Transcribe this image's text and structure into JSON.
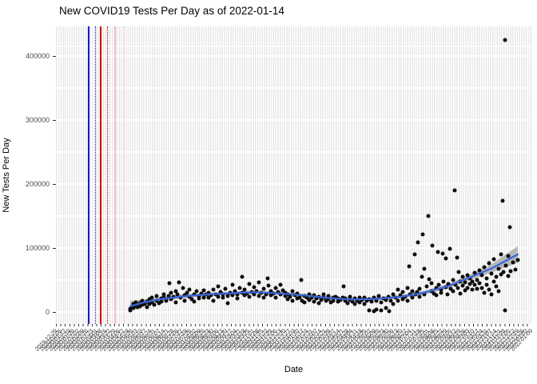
{
  "chart_data": {
    "type": "scatter",
    "title": "New COVID19 Tests Per Day as of 2022-01-14",
    "xlabel": "Date",
    "ylabel": "New Tests Per Day",
    "y_ticks": [
      0,
      100000,
      200000,
      300000,
      400000
    ],
    "ylim": [
      -18750,
      446250
    ],
    "grid": "dense light-gray vertical date gridlines, horizontal gridlines every 50000 (minor 25000? rendered every half-interval) as white breaks",
    "legend": "none",
    "point_color": "#0d0d0d",
    "x_axis_note": "x values below are panel pixels 0-595; the rotated date tick labels overlap and are illegible in the source image; tick label list is an estimated weekly sequence spanning the axis",
    "x_tick_labels": [
      "2019-12-29",
      "2020-01-05",
      "2020-01-12",
      "2020-01-19",
      "2020-01-26",
      "2020-02-02",
      "2020-02-09",
      "2020-02-16",
      "2020-02-23",
      "2020-03-01",
      "2020-03-08",
      "2020-03-15",
      "2020-03-22",
      "2020-03-29",
      "2020-04-05",
      "2020-04-12",
      "2020-04-19",
      "2020-04-26",
      "2020-05-03",
      "2020-05-10",
      "2020-05-17",
      "2020-05-24",
      "2020-05-31",
      "2020-06-07",
      "2020-06-14",
      "2020-06-21",
      "2020-06-28",
      "2020-07-05",
      "2020-07-12",
      "2020-07-19",
      "2020-07-26",
      "2020-08-02",
      "2020-08-09",
      "2020-08-16",
      "2020-08-23",
      "2020-08-30",
      "2020-09-06",
      "2020-09-13",
      "2020-09-20",
      "2020-09-27",
      "2020-10-04",
      "2020-10-11",
      "2020-10-18",
      "2020-10-25",
      "2020-11-01",
      "2020-11-08",
      "2020-11-15",
      "2020-11-22",
      "2020-11-29",
      "2020-12-06",
      "2020-12-13",
      "2020-12-20",
      "2020-12-27",
      "2021-01-03",
      "2021-01-10",
      "2021-01-17",
      "2021-01-24",
      "2021-01-31",
      "2021-02-07",
      "2021-02-14",
      "2021-02-21",
      "2021-02-28",
      "2021-03-07",
      "2021-03-14",
      "2021-03-21",
      "2021-03-28",
      "2021-04-04",
      "2021-04-11",
      "2021-04-18",
      "2021-04-25",
      "2021-05-02",
      "2021-05-09",
      "2021-05-16",
      "2021-05-23",
      "2021-05-30",
      "2021-06-06",
      "2021-06-13",
      "2021-06-20",
      "2021-06-27",
      "2021-07-04",
      "2021-07-11",
      "2021-07-18",
      "2021-07-25",
      "2021-08-01",
      "2021-08-08",
      "2021-08-15",
      "2021-08-22",
      "2021-08-29",
      "2021-09-05",
      "2021-09-12",
      "2021-09-19",
      "2021-09-26",
      "2021-10-03",
      "2021-10-10",
      "2021-10-17",
      "2021-10-24",
      "2021-10-31",
      "2021-11-07",
      "2021-11-14",
      "2021-11-21",
      "2021-11-28",
      "2021-12-05",
      "2021-12-12",
      "2021-12-19",
      "2021-12-26",
      "2022-01-02",
      "2022-01-09"
    ],
    "vlines": [
      {
        "x": 40,
        "color": "#1b1bd1",
        "style": "solid"
      },
      {
        "x": 49,
        "color": "#1b1bd1",
        "style": "dotted"
      },
      {
        "x": 55,
        "color": "#d40000",
        "style": "solid"
      },
      {
        "x": 64,
        "color": "#d40000",
        "style": "dotted"
      },
      {
        "x": 73,
        "color": "#f5b8c4",
        "style": "solid"
      },
      {
        "x": 85,
        "color": "#f5b8c4",
        "style": "dotted"
      }
    ],
    "smooth": {
      "name": "loess-smooth-with-ci",
      "color": "#3866d8",
      "ribbon_color": "rgba(110,110,110,0.45)",
      "line": [
        [
          93,
          9000
        ],
        [
          110,
          15000
        ],
        [
          130,
          20000
        ],
        [
          160,
          24500
        ],
        [
          190,
          27500
        ],
        [
          230,
          30000
        ],
        [
          250,
          31000
        ],
        [
          280,
          29000
        ],
        [
          310,
          26000
        ],
        [
          340,
          22000
        ],
        [
          370,
          19500
        ],
        [
          400,
          20500
        ],
        [
          430,
          23500
        ],
        [
          460,
          30000
        ],
        [
          490,
          40000
        ],
        [
          520,
          55000
        ],
        [
          545,
          68000
        ],
        [
          578,
          90000
        ]
      ],
      "ribbon_halfwidth": [
        [
          93,
          8000
        ],
        [
          110,
          5000
        ],
        [
          130,
          3500
        ],
        [
          160,
          3000
        ],
        [
          190,
          2500
        ],
        [
          230,
          2500
        ],
        [
          250,
          2500
        ],
        [
          280,
          2500
        ],
        [
          310,
          2500
        ],
        [
          340,
          2500
        ],
        [
          370,
          2500
        ],
        [
          400,
          2500
        ],
        [
          430,
          2500
        ],
        [
          460,
          3000
        ],
        [
          490,
          3500
        ],
        [
          520,
          4500
        ],
        [
          545,
          6500
        ],
        [
          578,
          13000
        ]
      ]
    },
    "points": [
      [
        93,
        5000
      ],
      [
        93,
        2000
      ],
      [
        95,
        8000
      ],
      [
        97,
        12000
      ],
      [
        97,
        6000
      ],
      [
        100,
        10000
      ],
      [
        100,
        15000
      ],
      [
        102,
        7000
      ],
      [
        105,
        14000
      ],
      [
        105,
        9000
      ],
      [
        108,
        18000
      ],
      [
        108,
        11000
      ],
      [
        111,
        13000
      ],
      [
        114,
        16000
      ],
      [
        114,
        8000
      ],
      [
        117,
        20000
      ],
      [
        117,
        12000
      ],
      [
        120,
        15000
      ],
      [
        120,
        23000
      ],
      [
        123,
        11000
      ],
      [
        126,
        18000
      ],
      [
        126,
        25000
      ],
      [
        129,
        14000
      ],
      [
        132,
        21000
      ],
      [
        132,
        16000
      ],
      [
        135,
        22000
      ],
      [
        135,
        28000
      ],
      [
        138,
        17000
      ],
      [
        141,
        25000
      ],
      [
        142,
        45000
      ],
      [
        144,
        30000
      ],
      [
        144,
        20000
      ],
      [
        147,
        24000
      ],
      [
        150,
        33000
      ],
      [
        150,
        15000
      ],
      [
        152,
        27000
      ],
      [
        154,
        46000
      ],
      [
        156,
        22000
      ],
      [
        159,
        38000
      ],
      [
        161,
        26000
      ],
      [
        161,
        18000
      ],
      [
        164,
        30000
      ],
      [
        167,
        24000
      ],
      [
        167,
        35000
      ],
      [
        170,
        20000
      ],
      [
        173,
        28000
      ],
      [
        173,
        16000
      ],
      [
        176,
        32000
      ],
      [
        179,
        25000
      ],
      [
        179,
        21000
      ],
      [
        182,
        29000
      ],
      [
        185,
        23000
      ],
      [
        185,
        34000
      ],
      [
        188,
        27000
      ],
      [
        191,
        30000
      ],
      [
        191,
        22000
      ],
      [
        194,
        26000
      ],
      [
        197,
        35000
      ],
      [
        197,
        18000
      ],
      [
        200,
        28000
      ],
      [
        203,
        24000
      ],
      [
        203,
        40000
      ],
      [
        206,
        31000
      ],
      [
        209,
        22000
      ],
      [
        209,
        27000
      ],
      [
        212,
        36000
      ],
      [
        215,
        25000
      ],
      [
        215,
        14000
      ],
      [
        218,
        30000
      ],
      [
        221,
        42000
      ],
      [
        221,
        26000
      ],
      [
        224,
        33000
      ],
      [
        227,
        21000
      ],
      [
        227,
        28000
      ],
      [
        230,
        38000
      ],
      [
        233,
        55000
      ],
      [
        233,
        30000
      ],
      [
        236,
        26000
      ],
      [
        236,
        35000
      ],
      [
        239,
        29000
      ],
      [
        242,
        44000
      ],
      [
        242,
        24000
      ],
      [
        245,
        31000
      ],
      [
        248,
        27000
      ],
      [
        248,
        39000
      ],
      [
        251,
        33000
      ],
      [
        254,
        25000
      ],
      [
        254,
        46000
      ],
      [
        257,
        30000
      ],
      [
        260,
        36000
      ],
      [
        260,
        22000
      ],
      [
        263,
        28000
      ],
      [
        265,
        52000
      ],
      [
        266,
        41000
      ],
      [
        269,
        26000
      ],
      [
        269,
        33000
      ],
      [
        272,
        29000
      ],
      [
        275,
        37000
      ],
      [
        275,
        23000
      ],
      [
        278,
        31000
      ],
      [
        281,
        27000
      ],
      [
        281,
        43000
      ],
      [
        284,
        34000
      ],
      [
        287,
        25000
      ],
      [
        287,
        30000
      ],
      [
        290,
        28000
      ],
      [
        290,
        20000
      ],
      [
        293,
        24000
      ],
      [
        296,
        32000
      ],
      [
        296,
        17000
      ],
      [
        299,
        26000
      ],
      [
        302,
        21000
      ],
      [
        302,
        29000
      ],
      [
        305,
        23000
      ],
      [
        307,
        50000
      ],
      [
        308,
        18000
      ],
      [
        311,
        25000
      ],
      [
        311,
        15000
      ],
      [
        314,
        22000
      ],
      [
        317,
        27000
      ],
      [
        317,
        19000
      ],
      [
        320,
        23000
      ],
      [
        323,
        16000
      ],
      [
        323,
        26000
      ],
      [
        326,
        21000
      ],
      [
        329,
        24000
      ],
      [
        329,
        14000
      ],
      [
        332,
        19000
      ],
      [
        335,
        22000
      ],
      [
        335,
        27000
      ],
      [
        338,
        17000
      ],
      [
        341,
        20000
      ],
      [
        341,
        25000
      ],
      [
        344,
        15000
      ],
      [
        347,
        22000
      ],
      [
        347,
        18000
      ],
      [
        350,
        24000
      ],
      [
        353,
        16000
      ],
      [
        353,
        21000
      ],
      [
        356,
        19000
      ],
      [
        359,
        23000
      ],
      [
        360,
        40000
      ],
      [
        362,
        17000
      ],
      [
        362,
        21000
      ],
      [
        365,
        14000
      ],
      [
        368,
        19000
      ],
      [
        368,
        24000
      ],
      [
        371,
        16000
      ],
      [
        374,
        21000
      ],
      [
        374,
        12000
      ],
      [
        377,
        18000
      ],
      [
        380,
        22000
      ],
      [
        380,
        15000
      ],
      [
        383,
        19000
      ],
      [
        386,
        13000
      ],
      [
        386,
        23000
      ],
      [
        389,
        17000
      ],
      [
        392,
        20000
      ],
      [
        392,
        3000
      ],
      [
        395,
        16000
      ],
      [
        398,
        1000
      ],
      [
        398,
        22000
      ],
      [
        401,
        18000
      ],
      [
        401,
        4000
      ],
      [
        404,
        25000
      ],
      [
        407,
        2000
      ],
      [
        407,
        15000
      ],
      [
        410,
        21000
      ],
      [
        413,
        6000
      ],
      [
        413,
        19000
      ],
      [
        416,
        24000
      ],
      [
        417,
        1500
      ],
      [
        419,
        17000
      ],
      [
        422,
        28000
      ],
      [
        422,
        13000
      ],
      [
        425,
        22000
      ],
      [
        428,
        18000
      ],
      [
        428,
        35000
      ],
      [
        431,
        26000
      ],
      [
        434,
        20000
      ],
      [
        434,
        31000
      ],
      [
        437,
        24000
      ],
      [
        440,
        38000
      ],
      [
        440,
        18000
      ],
      [
        442,
        71000
      ],
      [
        443,
        28000
      ],
      [
        446,
        33000
      ],
      [
        446,
        22000
      ],
      [
        449,
        90000
      ],
      [
        450,
        27000
      ],
      [
        452,
        31000
      ],
      [
        453,
        109000
      ],
      [
        455,
        24000
      ],
      [
        455,
        36000
      ],
      [
        458,
        55000
      ],
      [
        459,
        121000
      ],
      [
        461,
        67000
      ],
      [
        461,
        28000
      ],
      [
        464,
        40000
      ],
      [
        466,
        150000
      ],
      [
        467,
        51000
      ],
      [
        470,
        33000
      ],
      [
        470,
        45000
      ],
      [
        471,
        104000
      ],
      [
        473,
        29000
      ],
      [
        476,
        38000
      ],
      [
        476,
        26000
      ],
      [
        478,
        94000
      ],
      [
        479,
        42000
      ],
      [
        482,
        35000
      ],
      [
        482,
        30000
      ],
      [
        484,
        91000
      ],
      [
        485,
        47000
      ],
      [
        488,
        84000
      ],
      [
        488,
        39000
      ],
      [
        490,
        28000
      ],
      [
        491,
        44000
      ],
      [
        493,
        99000
      ],
      [
        494,
        36000
      ],
      [
        497,
        50000
      ],
      [
        497,
        32000
      ],
      [
        499,
        190000
      ],
      [
        500,
        43000
      ],
      [
        502,
        85000
      ],
      [
        503,
        37000
      ],
      [
        504,
        62000
      ],
      [
        506,
        48000
      ],
      [
        506,
        29000
      ],
      [
        509,
        55000
      ],
      [
        509,
        41000
      ],
      [
        512,
        34000
      ],
      [
        512,
        46000
      ],
      [
        515,
        58000
      ],
      [
        515,
        38000
      ],
      [
        518,
        44000
      ],
      [
        518,
        52000
      ],
      [
        521,
        35000
      ],
      [
        521,
        48000
      ],
      [
        524,
        61000
      ],
      [
        524,
        42000
      ],
      [
        527,
        50000
      ],
      [
        527,
        36000
      ],
      [
        530,
        65000
      ],
      [
        530,
        45000
      ],
      [
        533,
        38000
      ],
      [
        533,
        57000
      ],
      [
        536,
        70000
      ],
      [
        536,
        30000
      ],
      [
        539,
        52000
      ],
      [
        539,
        43000
      ],
      [
        542,
        76000
      ],
      [
        542,
        35000
      ],
      [
        545,
        60000
      ],
      [
        545,
        28000
      ],
      [
        548,
        82000
      ],
      [
        548,
        48000
      ],
      [
        551,
        55000
      ],
      [
        551,
        40000
      ],
      [
        554,
        68000
      ],
      [
        554,
        33000
      ],
      [
        557,
        90000
      ],
      [
        557,
        59000
      ],
      [
        559,
        174000
      ],
      [
        560,
        62000
      ],
      [
        562,
        425000
      ],
      [
        562,
        2500
      ],
      [
        563,
        72000
      ],
      [
        566,
        56000
      ],
      [
        566,
        88000
      ],
      [
        568,
        132000
      ],
      [
        569,
        64000
      ],
      [
        572,
        78000
      ],
      [
        575,
        66000
      ],
      [
        578,
        81000
      ]
    ]
  }
}
